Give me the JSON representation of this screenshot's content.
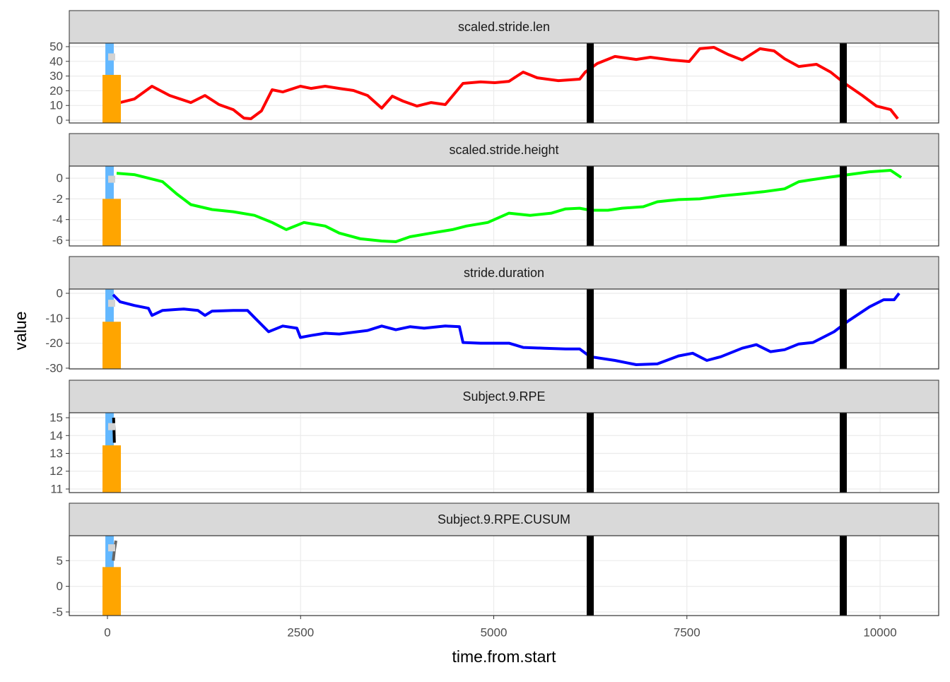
{
  "shared": {
    "xlabel": "time.from.start",
    "ylabel": "value",
    "xlim": [
      -494,
      10759
    ],
    "xticks": [
      0,
      2500,
      5000,
      7500,
      10000
    ],
    "grid": true,
    "vlines": [
      6249,
      9524
    ],
    "vline_color": "#000000",
    "bar_x": [
      -64,
      174
    ],
    "bar_color": "#FFA500",
    "band_x": [
      -27,
      82
    ],
    "band_color": "#63B8FF",
    "point_x": 55,
    "point_color": "#D3D3D3"
  },
  "chart_data": [
    {
      "type": "line",
      "title": "scaled.stride.len",
      "ylim": [
        -1.9,
        52.4
      ],
      "yticks": [
        0,
        10,
        20,
        30,
        40,
        50
      ],
      "bar_value": 30.8,
      "point_value": 43,
      "x": [
        165,
        348,
        576,
        805,
        1080,
        1262,
        1445,
        1628,
        1766,
        1857,
        1994,
        2132,
        2269,
        2498,
        2635,
        2818,
        3001,
        3184,
        3367,
        3550,
        3687,
        3824,
        4007,
        4190,
        4373,
        4602,
        4831,
        5014,
        5197,
        5380,
        5563,
        5837,
        6112,
        6185,
        6340,
        6569,
        6844,
        7027,
        7301,
        7530,
        7667,
        7850,
        8033,
        8216,
        8445,
        8628,
        8765,
        8948,
        9177,
        9360,
        9543,
        9771,
        9954,
        10137,
        10229
      ],
      "series": [
        {
          "color": "#FF0000",
          "values": [
            12.0,
            14.4,
            23.1,
            16.8,
            12.0,
            16.8,
            10.6,
            7.2,
            1.4,
            1.0,
            6.3,
            20.7,
            19.2,
            23.1,
            21.6,
            23.1,
            21.6,
            20.2,
            16.8,
            8.2,
            16.3,
            13.0,
            9.6,
            12.0,
            10.6,
            25.0,
            26.0,
            25.5,
            26.4,
            32.7,
            28.8,
            26.9,
            27.9,
            32.7,
            38.5,
            43.3,
            41.3,
            42.8,
            40.9,
            39.9,
            48.6,
            49.5,
            44.7,
            40.9,
            48.6,
            47.1,
            41.8,
            36.5,
            38.0,
            32.7,
            25.0,
            16.8,
            9.6,
            7.2,
            1.0
          ]
        }
      ]
    },
    {
      "type": "line",
      "title": "scaled.stride.height",
      "ylim": [
        -6.55,
        1.17
      ],
      "yticks": [
        -6,
        -4,
        -2,
        0
      ],
      "bar_value": -2.0,
      "point_value": -0.1,
      "x": [
        119,
        348,
        531,
        714,
        897,
        1080,
        1354,
        1629,
        1903,
        2132,
        2315,
        2543,
        2818,
        3001,
        3275,
        3550,
        3733,
        3916,
        4190,
        4465,
        4648,
        4922,
        5197,
        5471,
        5746,
        5929,
        6112,
        6249,
        6478,
        6661,
        6935,
        7118,
        7392,
        7667,
        7941,
        8216,
        8490,
        8765,
        8948,
        9314,
        9588,
        9863,
        10137,
        10274
      ],
      "series": [
        {
          "color": "#00FF00",
          "values": [
            0.48,
            0.34,
            0.0,
            -0.34,
            -1.52,
            -2.55,
            -3.03,
            -3.24,
            -3.59,
            -4.28,
            -4.97,
            -4.28,
            -4.62,
            -5.31,
            -5.86,
            -6.07,
            -6.14,
            -5.66,
            -5.31,
            -4.97,
            -4.62,
            -4.28,
            -3.38,
            -3.59,
            -3.38,
            -2.97,
            -2.9,
            -3.1,
            -3.1,
            -2.9,
            -2.76,
            -2.28,
            -2.07,
            -2.0,
            -1.72,
            -1.52,
            -1.31,
            -1.03,
            -0.34,
            0.07,
            0.34,
            0.62,
            0.76,
            0.07
          ]
        }
      ]
    },
    {
      "type": "line",
      "title": "stride.duration",
      "ylim": [
        -30.3,
        1.7
      ],
      "yticks": [
        -30,
        -20,
        -10,
        0
      ],
      "bar_value": -11.4,
      "point_value": -4,
      "x": [
        73,
        165,
        348,
        531,
        576,
        714,
        988,
        1171,
        1263,
        1354,
        1629,
        1812,
        1903,
        2086,
        2269,
        2452,
        2498,
        2635,
        2818,
        3001,
        3367,
        3550,
        3733,
        3916,
        4099,
        4373,
        4556,
        4602,
        4831,
        5197,
        5380,
        5654,
        5929,
        6112,
        6249,
        6569,
        6844,
        7118,
        7392,
        7575,
        7758,
        7941,
        8216,
        8399,
        8582,
        8765,
        8948,
        9131,
        9405,
        9588,
        9863,
        10046,
        10183,
        10247
      ],
      "series": [
        {
          "color": "#0000FF",
          "values": [
            -0.57,
            -3.43,
            -4.86,
            -6.0,
            -8.86,
            -6.86,
            -6.29,
            -6.86,
            -8.86,
            -7.14,
            -6.86,
            -6.86,
            -9.71,
            -15.4,
            -13.1,
            -14.0,
            -17.7,
            -16.9,
            -16.0,
            -16.3,
            -14.9,
            -13.1,
            -14.6,
            -13.4,
            -14.0,
            -13.1,
            -13.4,
            -19.7,
            -20.0,
            -20.0,
            -21.7,
            -22.0,
            -22.3,
            -22.3,
            -25.4,
            -26.9,
            -28.6,
            -28.3,
            -25.1,
            -24.0,
            -26.9,
            -25.4,
            -22.0,
            -20.6,
            -23.4,
            -22.6,
            -20.3,
            -19.7,
            -15.4,
            -11.1,
            -5.43,
            -2.57,
            -2.57,
            0.0
          ]
        }
      ]
    },
    {
      "type": "line",
      "title": "Subject.9.RPE",
      "ylim": [
        10.8,
        15.28
      ],
      "yticks": [
        11,
        12,
        13,
        14,
        15
      ],
      "bar_value": 13.45,
      "point_value": 14.5,
      "x": [
        80,
        85,
        90
      ],
      "series": [
        {
          "color": "#000000",
          "values": [
            15.0,
            14.3,
            13.6
          ]
        }
      ]
    },
    {
      "type": "line",
      "title": "Subject.9.RPE.CUSUM",
      "ylim": [
        -5.7,
        9.86
      ],
      "yticks": [
        -5,
        0,
        5
      ],
      "bar_value": 3.75,
      "point_value": 7.5,
      "x": [
        75,
        90,
        110
      ],
      "series": [
        {
          "color": "#666666",
          "values": [
            5.0,
            7.0,
            8.9
          ]
        }
      ]
    }
  ]
}
